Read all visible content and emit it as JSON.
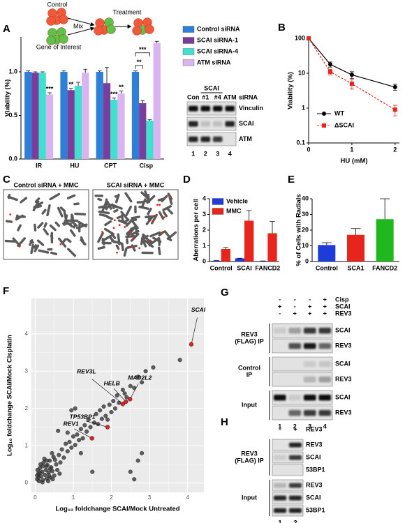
{
  "figure": {
    "schematic": {
      "control": "Control",
      "gene": "Gene of Interest",
      "mix": "Mix",
      "treatment": "Treatment"
    },
    "blot_a": {
      "group": "SCAI",
      "lanes": [
        "Con",
        "#1",
        "#4",
        "ATM"
      ],
      "lane_label": "siRNA",
      "rows": [
        "Vinculin",
        "SCAI",
        "ATM"
      ],
      "lane_numbers": [
        "1",
        "2",
        "3",
        "4"
      ]
    },
    "images_c": {
      "panel": "C",
      "titles": [
        "Control siRNA + MMC",
        "SCAI siRNA + MMC"
      ]
    },
    "blot_g": {
      "panel": "G",
      "conditions": [
        {
          "name": "Cisp",
          "signs": [
            "-",
            "-",
            "-",
            "+"
          ]
        },
        {
          "name": "SCAI",
          "signs": [
            "+",
            "-",
            "+",
            "+"
          ]
        },
        {
          "name": "REV3",
          "signs": [
            "-",
            "+",
            "+",
            "+"
          ]
        }
      ],
      "groups": [
        {
          "name_lines": [
            "REV3",
            "(FLAG) IP"
          ],
          "rows": [
            "SCAI",
            "REV3"
          ]
        },
        {
          "name_lines": [
            "Control",
            "IP"
          ],
          "rows": [
            "SCAI",
            "REV3"
          ]
        },
        {
          "name_lines": [
            "Input"
          ],
          "rows": [
            "SCAI",
            "REV3"
          ]
        }
      ],
      "lane_numbers": [
        "1",
        "2",
        "3",
        "4"
      ]
    },
    "blot_h": {
      "panel": "H",
      "conditions": [
        {
          "name": "REV3",
          "signs": [
            "-",
            "+"
          ]
        }
      ],
      "groups": [
        {
          "name_lines": [
            "REV3",
            "(FLAG) IP"
          ],
          "rows": [
            "REV3",
            "SCAI",
            "53BP1"
          ]
        },
        {
          "name_lines": [
            "Input"
          ],
          "rows": [
            "REV3",
            "SCAI",
            "53BP1"
          ]
        }
      ],
      "lane_numbers": [
        "1",
        "2"
      ]
    }
  },
  "chart_data": [
    {
      "type": "bar",
      "panel": "A",
      "ylabel": "Viability (%)",
      "categories": [
        "IR",
        "HU",
        "CPT",
        "Cisp"
      ],
      "series": [
        {
          "name": "Control siRNA",
          "color": "#2f7fd8",
          "values": [
            1.0,
            1.0,
            1.0,
            1.0
          ],
          "errors": [
            0.01,
            0.01,
            0.01,
            0.01
          ]
        },
        {
          "name": "SCAI siRNA-1",
          "color": "#7a3d9c",
          "values": [
            0.99,
            0.79,
            0.87,
            0.64
          ],
          "errors": [
            0.01,
            0.02,
            0.18,
            0.03
          ],
          "significance": [
            null,
            "**",
            null,
            {
              "label": "**",
              "vs": 0
            }
          ]
        },
        {
          "name": "SCAI siRNA-4",
          "color": "#3fe0d0",
          "values": [
            0.99,
            0.84,
            0.68,
            0.44
          ],
          "errors": [
            0.01,
            0.04,
            0.02,
            0.01
          ],
          "significance": [
            null,
            null,
            "***",
            {
              "label": "***",
              "vs": 0
            }
          ]
        },
        {
          "name": "ATM siRNA",
          "color": "#dab4f0",
          "values": [
            0.74,
            0.99,
            0.75,
            1.33
          ],
          "errors": [
            0.02,
            0.04,
            0.03,
            0.02
          ],
          "significance": [
            "***",
            null,
            "**",
            null
          ]
        }
      ],
      "ylim": [
        0,
        1.4
      ],
      "yticks": [
        {
          "value": 0,
          "label": "0.0"
        },
        {
          "value": 0.5,
          "label": "0.5"
        },
        {
          "value": 1,
          "label": "1.0"
        }
      ],
      "legend": "right"
    },
    {
      "type": "line",
      "panel": "B",
      "xlabel": "HU (mM)",
      "ylabel": "Viability (%)",
      "log_y": true,
      "x": [
        0,
        0.5,
        1,
        2
      ],
      "series": [
        {
          "name": "WT",
          "color": "#000000",
          "dash": false,
          "marker": "circle",
          "values": [
            100,
            18,
            9,
            4
          ],
          "errors": [
            2,
            3,
            2,
            0.8
          ]
        },
        {
          "name": "ΔSCAI",
          "color": "#e8251c",
          "dash": true,
          "marker": "square",
          "values": [
            100,
            11,
            5,
            0.9
          ],
          "errors": [
            2,
            2,
            1.5,
            0.3
          ]
        }
      ],
      "xlim": [
        0,
        2.1
      ],
      "xticks": [
        0,
        1,
        2
      ],
      "ylim": [
        0.1,
        100
      ],
      "yticks": [
        0.1,
        1,
        10,
        100
      ],
      "legend": "lower-left"
    },
    {
      "type": "bar",
      "panel": "D",
      "ylabel": "Aberrations per cell",
      "categories": [
        "Control",
        "SCAI",
        "FANCD2"
      ],
      "series": [
        {
          "name": "Vehicle",
          "color": "#1e3cd8",
          "values": [
            0.05,
            0.2,
            0.03
          ],
          "errors": [
            0.01,
            0.01,
            0.01
          ]
        },
        {
          "name": "MMC",
          "color": "#e8251c",
          "values": [
            0.8,
            2.6,
            1.8
          ],
          "errors": [
            0.1,
            0.65,
            0.75
          ]
        }
      ],
      "ylim": [
        0,
        4
      ],
      "yticks": [
        0,
        1,
        2,
        3,
        4
      ],
      "legend": "upper-left"
    },
    {
      "type": "bar",
      "panel": "E",
      "ylabel": "% of Cells with Radials",
      "categories": [
        "Control",
        "SCA1",
        "FANCD2"
      ],
      "values": [
        10.5,
        17,
        27
      ],
      "errors": [
        1.5,
        4,
        13
      ],
      "colors": [
        "#1e3cd8",
        "#e8251c",
        "#1fb81f"
      ],
      "ylim": [
        0,
        40
      ],
      "yticks": [
        0,
        10,
        20,
        30,
        40
      ]
    },
    {
      "type": "scatter",
      "panel": "F",
      "xlabel": "Log₁₀ foldchange SCAI/Mock Untreated",
      "ylabel": "Log₁₀ foldchange SCAI/Mock Cisplatin",
      "color": "#3a3a3a",
      "grid": true,
      "background": "#ebebeb",
      "x": [
        0.05,
        0.08,
        0.1,
        0.12,
        0.15,
        0.18,
        0.2,
        0.22,
        0.25,
        0.28,
        0.3,
        0.32,
        0.35,
        0.38,
        0.4,
        0.42,
        0.45,
        0.48,
        0.5,
        0.55,
        0.06,
        0.09,
        0.14,
        0.19,
        0.24,
        0.29,
        0.34,
        0.39,
        0.44,
        0.52,
        0.58,
        0.62,
        0.66,
        0.7,
        0.75,
        0.8,
        0.85,
        0.9,
        0.95,
        1.0,
        1.05,
        1.1,
        1.15,
        1.2,
        1.25,
        1.3,
        1.35,
        1.4,
        1.45,
        1.55,
        1.6,
        1.65,
        1.7,
        1.75,
        1.8,
        1.85,
        1.95,
        2.0,
        2.05,
        2.1,
        2.15,
        2.2,
        2.3,
        2.4,
        2.5,
        2.6,
        2.7,
        2.8,
        2.9,
        3.1,
        3.8,
        0.6,
        0.95,
        1.05,
        1.5,
        2.5,
        2.6,
        2.7,
        2.8,
        0.2,
        0.12,
        0.36,
        0.46,
        0.64,
        1.2,
        0.05,
        0.3,
        0.85,
        2.35,
        1.9
      ],
      "values": [
        0.1,
        0.25,
        0.05,
        0.4,
        0.18,
        0.3,
        0.08,
        0.55,
        0.22,
        0.35,
        0.12,
        0.48,
        0.28,
        0.6,
        0.15,
        0.42,
        0.32,
        0.7,
        0.2,
        0.5,
        0.35,
        0.15,
        0.5,
        0.02,
        0.65,
        0.45,
        0.05,
        0.38,
        0.8,
        0.62,
        0.35,
        0.75,
        0.55,
        0.9,
        0.68,
        1.05,
        0.85,
        1.1,
        0.95,
        1.25,
        1.02,
        1.3,
        1.15,
        1.45,
        1.2,
        1.55,
        1.38,
        1.7,
        1.5,
        1.62,
        1.85,
        1.58,
        1.95,
        1.72,
        2.05,
        1.8,
        2.1,
        1.9,
        2.2,
        2.0,
        2.35,
        2.15,
        2.5,
        2.3,
        2.6,
        2.55,
        2.85,
        2.7,
        3.0,
        3.1,
        3.3,
        1.4,
        1.95,
        2.0,
        0.3,
        0.3,
        0.1,
        0.6,
        0.8,
        0.45,
        0.28,
        0.2,
        0.1,
        0.25,
        0.8,
        0.2,
        0.6,
        1.35,
        2.4,
        1.7
      ],
      "highlights": {
        "color": "#d62728",
        "labels": [
          "SCAI",
          "MAD2L2",
          "HELB",
          "REV3L",
          "TP53BP1",
          "REV1"
        ],
        "x": [
          4.1,
          2.49,
          2.38,
          2.3,
          1.9,
          1.49
        ],
        "values": [
          3.72,
          2.25,
          2.18,
          2.12,
          1.5,
          1.2
        ]
      },
      "xlim": [
        -0.1,
        4.43
      ],
      "xticks": [
        0,
        1,
        2,
        3,
        4
      ],
      "ylim": [
        -0.25,
        4.95
      ],
      "yticks": [
        0,
        1,
        2,
        3,
        4
      ]
    }
  ]
}
